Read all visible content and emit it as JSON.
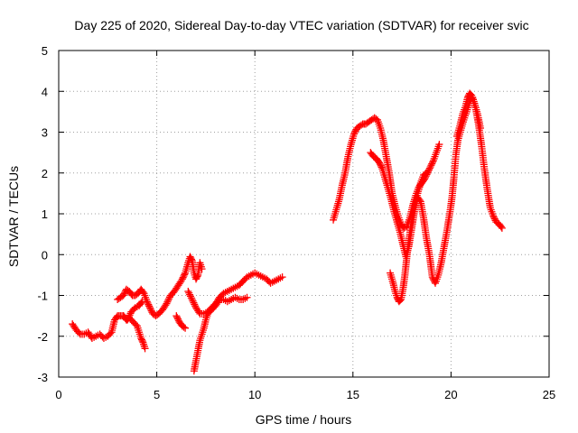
{
  "chart_data": {
    "type": "scatter",
    "title": "Day 225 of 2020, Sidereal Day-to-day VTEC variation (SDTVAR) for receiver svic",
    "xlabel": "GPS time / hours",
    "ylabel": "SDTVAR / TECUs",
    "xlim": [
      0,
      25
    ],
    "ylim": [
      -3,
      5
    ],
    "xticks": [
      0,
      5,
      10,
      15,
      20,
      25
    ],
    "yticks": [
      -3,
      -2,
      -1,
      0,
      1,
      2,
      3,
      4,
      5
    ],
    "xtick_labels": [
      "0",
      "5",
      "10",
      "15",
      "20",
      "25"
    ],
    "ytick_labels": [
      "-3",
      "-2",
      "-1",
      "0",
      "1",
      "2",
      "3",
      "4",
      "5"
    ],
    "grid": true,
    "marker": "+",
    "color": "#ff0000",
    "series": [
      {
        "name": "SDTVAR",
        "segments": [
          [
            [
              0.7,
              -1.7
            ],
            [
              0.9,
              -1.85
            ],
            [
              1.1,
              -1.95
            ],
            [
              1.3,
              -1.95
            ],
            [
              1.5,
              -1.9
            ],
            [
              1.7,
              -2.05
            ],
            [
              1.9,
              -2.0
            ],
            [
              2.1,
              -1.95
            ],
            [
              2.3,
              -2.05
            ],
            [
              2.5,
              -2.0
            ],
            [
              2.7,
              -1.9
            ],
            [
              2.85,
              -1.6
            ],
            [
              3.0,
              -1.5
            ],
            [
              3.15,
              -1.5
            ],
            [
              3.3,
              -1.5
            ],
            [
              3.45,
              -1.6
            ],
            [
              3.6,
              -1.55
            ],
            [
              3.8,
              -1.65
            ],
            [
              4.0,
              -1.75
            ],
            [
              4.1,
              -1.9
            ],
            [
              4.2,
              -2.05
            ],
            [
              4.3,
              -2.15
            ],
            [
              4.4,
              -2.3
            ]
          ],
          [
            [
              3.0,
              -1.1
            ],
            [
              3.15,
              -1.05
            ],
            [
              3.3,
              -1.0
            ],
            [
              3.45,
              -0.85
            ],
            [
              3.6,
              -0.9
            ],
            [
              3.75,
              -1.0
            ],
            [
              3.9,
              -1.0
            ],
            [
              4.05,
              -0.95
            ],
            [
              4.2,
              -0.85
            ],
            [
              4.35,
              -0.95
            ],
            [
              4.5,
              -1.15
            ],
            [
              4.65,
              -1.3
            ],
            [
              4.8,
              -1.45
            ],
            [
              4.95,
              -1.5
            ],
            [
              5.1,
              -1.45
            ],
            [
              5.3,
              -1.35
            ],
            [
              5.5,
              -1.2
            ],
            [
              5.7,
              -1.0
            ],
            [
              5.9,
              -0.9
            ],
            [
              6.1,
              -0.75
            ],
            [
              6.3,
              -0.6
            ],
            [
              6.45,
              -0.45
            ],
            [
              6.6,
              -0.2
            ],
            [
              6.7,
              -0.05
            ],
            [
              6.8,
              -0.15
            ],
            [
              6.9,
              -0.45
            ],
            [
              7.0,
              -0.6
            ],
            [
              7.1,
              -0.5
            ],
            [
              7.2,
              -0.2
            ],
            [
              7.3,
              -0.35
            ]
          ],
          [
            [
              3.3,
              -1.5
            ],
            [
              3.5,
              -1.6
            ],
            [
              3.7,
              -1.4
            ],
            [
              3.9,
              -1.3
            ],
            [
              4.1,
              -1.25
            ],
            [
              4.25,
              -1.15
            ]
          ],
          [
            [
              6.0,
              -1.5
            ],
            [
              6.15,
              -1.65
            ],
            [
              6.3,
              -1.75
            ],
            [
              6.45,
              -1.8
            ]
          ],
          [
            [
              6.9,
              -2.85
            ],
            [
              7.0,
              -2.6
            ],
            [
              7.1,
              -2.35
            ],
            [
              7.2,
              -2.1
            ],
            [
              7.3,
              -1.95
            ],
            [
              7.4,
              -1.8
            ],
            [
              7.5,
              -1.6
            ],
            [
              7.6,
              -1.45
            ],
            [
              7.8,
              -1.35
            ],
            [
              8.0,
              -1.25
            ],
            [
              8.2,
              -1.1
            ],
            [
              8.4,
              -1.1
            ],
            [
              8.6,
              -1.15
            ],
            [
              8.8,
              -1.1
            ],
            [
              9.0,
              -1.05
            ],
            [
              9.2,
              -1.1
            ],
            [
              9.4,
              -1.1
            ],
            [
              9.6,
              -1.05
            ]
          ],
          [
            [
              6.6,
              -0.9
            ],
            [
              6.8,
              -1.1
            ],
            [
              7.0,
              -1.3
            ],
            [
              7.2,
              -1.45
            ],
            [
              7.4,
              -1.45
            ],
            [
              7.6,
              -1.4
            ],
            [
              7.8,
              -1.3
            ],
            [
              8.0,
              -1.2
            ],
            [
              8.2,
              -1.05
            ],
            [
              8.4,
              -0.95
            ],
            [
              8.6,
              -0.9
            ],
            [
              8.8,
              -0.85
            ],
            [
              9.0,
              -0.8
            ],
            [
              9.2,
              -0.75
            ],
            [
              9.4,
              -0.65
            ],
            [
              9.6,
              -0.55
            ],
            [
              9.8,
              -0.5
            ],
            [
              10.0,
              -0.45
            ],
            [
              10.2,
              -0.5
            ],
            [
              10.4,
              -0.55
            ],
            [
              10.6,
              -0.6
            ],
            [
              10.8,
              -0.7
            ],
            [
              11.0,
              -0.65
            ],
            [
              11.2,
              -0.6
            ],
            [
              11.4,
              -0.55
            ]
          ],
          [
            [
              14.0,
              0.85
            ],
            [
              14.15,
              1.1
            ],
            [
              14.3,
              1.35
            ],
            [
              14.45,
              1.7
            ],
            [
              14.6,
              2.0
            ],
            [
              14.75,
              2.4
            ],
            [
              14.9,
              2.7
            ],
            [
              15.05,
              2.95
            ],
            [
              15.2,
              3.1
            ],
            [
              15.35,
              3.15
            ],
            [
              15.5,
              3.2
            ],
            [
              15.65,
              3.2
            ],
            [
              15.8,
              3.25
            ],
            [
              15.95,
              3.3
            ],
            [
              16.1,
              3.35
            ],
            [
              16.25,
              3.3
            ],
            [
              16.4,
              3.1
            ],
            [
              16.55,
              2.8
            ],
            [
              16.7,
              2.4
            ],
            [
              16.85,
              2.0
            ],
            [
              17.0,
              1.5
            ],
            [
              17.15,
              1.2
            ],
            [
              17.3,
              0.95
            ],
            [
              17.45,
              0.75
            ],
            [
              17.6,
              0.65
            ],
            [
              17.75,
              0.7
            ],
            [
              17.9,
              0.9
            ],
            [
              18.05,
              1.2
            ],
            [
              18.2,
              1.45
            ],
            [
              18.35,
              1.65
            ],
            [
              18.5,
              1.75
            ],
            [
              18.65,
              1.85
            ],
            [
              18.8,
              2.0
            ],
            [
              18.95,
              2.15
            ],
            [
              19.1,
              2.3
            ],
            [
              19.25,
              2.5
            ],
            [
              19.4,
              2.7
            ]
          ],
          [
            [
              15.9,
              2.5
            ],
            [
              16.05,
              2.4
            ],
            [
              16.2,
              2.35
            ],
            [
              16.35,
              2.25
            ],
            [
              16.5,
              2.1
            ],
            [
              16.65,
              1.85
            ],
            [
              16.8,
              1.6
            ],
            [
              16.95,
              1.35
            ],
            [
              17.1,
              1.05
            ],
            [
              17.25,
              0.8
            ],
            [
              17.4,
              0.55
            ],
            [
              17.55,
              0.25
            ],
            [
              17.7,
              -0.05
            ],
            [
              17.85,
              0.2
            ],
            [
              18.0,
              0.65
            ],
            [
              18.15,
              1.1
            ],
            [
              18.3,
              1.4
            ],
            [
              18.45,
              1.3
            ],
            [
              18.6,
              0.9
            ],
            [
              18.75,
              0.4
            ],
            [
              18.9,
              0.0
            ],
            [
              19.05,
              -0.55
            ],
            [
              19.2,
              -0.7
            ],
            [
              19.35,
              -0.5
            ],
            [
              19.5,
              -0.2
            ],
            [
              19.65,
              0.2
            ],
            [
              19.8,
              0.6
            ],
            [
              19.95,
              1.05
            ],
            [
              20.05,
              1.4
            ],
            [
              20.15,
              1.9
            ],
            [
              20.25,
              2.45
            ],
            [
              20.35,
              2.8
            ],
            [
              20.5,
              3.05
            ],
            [
              20.65,
              3.3
            ],
            [
              20.8,
              3.5
            ],
            [
              20.95,
              3.75
            ],
            [
              21.1,
              3.85
            ],
            [
              21.25,
              3.6
            ],
            [
              21.4,
              3.2
            ],
            [
              21.55,
              2.7
            ],
            [
              21.7,
              2.1
            ],
            [
              21.85,
              1.6
            ],
            [
              22.0,
              1.15
            ],
            [
              22.15,
              0.95
            ],
            [
              22.3,
              0.8
            ],
            [
              22.45,
              0.75
            ],
            [
              22.6,
              0.65
            ]
          ],
          [
            [
              16.9,
              -0.45
            ],
            [
              17.05,
              -0.7
            ],
            [
              17.15,
              -0.9
            ],
            [
              17.25,
              -1.05
            ],
            [
              17.35,
              -1.15
            ],
            [
              17.45,
              -1.1
            ],
            [
              17.55,
              -0.85
            ],
            [
              17.65,
              -0.5
            ],
            [
              17.75,
              -0.05
            ],
            [
              17.85,
              0.35
            ],
            [
              17.95,
              0.7
            ],
            [
              18.05,
              0.95
            ],
            [
              18.15,
              1.25
            ],
            [
              18.3,
              1.5
            ],
            [
              18.45,
              1.75
            ],
            [
              18.6,
              1.95
            ],
            [
              18.75,
              2.0
            ]
          ],
          [
            [
              20.3,
              2.9
            ],
            [
              20.45,
              3.15
            ],
            [
              20.6,
              3.45
            ],
            [
              20.75,
              3.65
            ],
            [
              20.85,
              3.85
            ],
            [
              20.95,
              3.95
            ],
            [
              21.05,
              3.9
            ],
            [
              21.2,
              3.7
            ],
            [
              21.35,
              3.45
            ],
            [
              21.5,
              3.1
            ]
          ]
        ]
      }
    ]
  }
}
